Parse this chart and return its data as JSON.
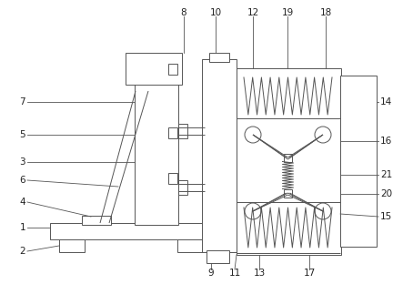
{
  "background_color": "#ffffff",
  "line_color": "#555555",
  "label_color": "#222222",
  "figsize": [
    4.43,
    3.12
  ],
  "dpi": 100
}
